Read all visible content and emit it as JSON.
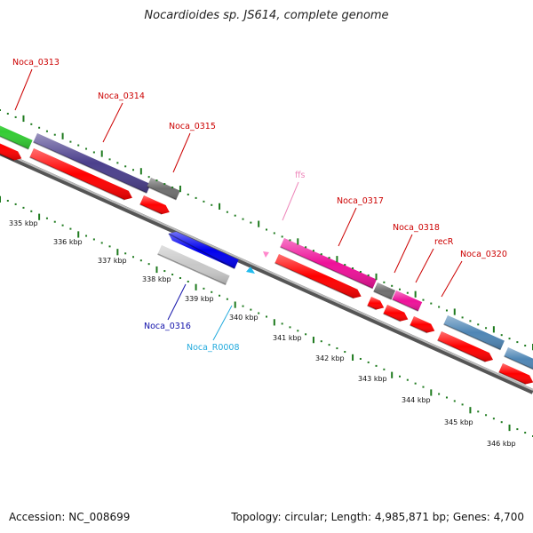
{
  "title": "Nocardioides sp. JS614, complete genome",
  "footer": {
    "accession": "Accession: NC_008699",
    "topology": "Topology: circular; Length: 4,985,871 bp; Genes: 4,700"
  },
  "colors": {
    "red": "#ff0000",
    "green": "#33cc33",
    "purple": "#4b3f8c",
    "gray": "#6e6e6e",
    "blue": "#0000ee",
    "lightgray": "#c8c8c8",
    "magenta": "#ee1199",
    "steelblue": "#4f86b5",
    "pink": "#ff88cc",
    "cyan": "#22bbee",
    "tick_green": "#1e7a1e",
    "label_red": "#cc0000",
    "label_blue": "#1010aa",
    "label_cyan": "#22aadd",
    "label_pink": "#ee88bb"
  },
  "scale_labels": [
    "335 kbp",
    "336 kbp",
    "337 kbp",
    "338 kbp",
    "339 kbp",
    "340 kbp",
    "341 kbp",
    "342 kbp",
    "343 kbp",
    "344 kbp",
    "345 kbp",
    "346 kbp"
  ],
  "gene_labels": [
    {
      "id": "Noca_0313",
      "color": "label_red"
    },
    {
      "id": "Noca_0314",
      "color": "label_red"
    },
    {
      "id": "Noca_0315",
      "color": "label_red"
    },
    {
      "id": "ffs",
      "color": "label_pink"
    },
    {
      "id": "Noca_0317",
      "color": "label_red"
    },
    {
      "id": "Noca_0318",
      "color": "label_red"
    },
    {
      "id": "recR",
      "color": "label_red"
    },
    {
      "id": "Noca_0320",
      "color": "label_red"
    },
    {
      "id": "Noca_0316",
      "color": "label_blue"
    },
    {
      "id": "Noca_R0008",
      "color": "label_cyan"
    }
  ]
}
